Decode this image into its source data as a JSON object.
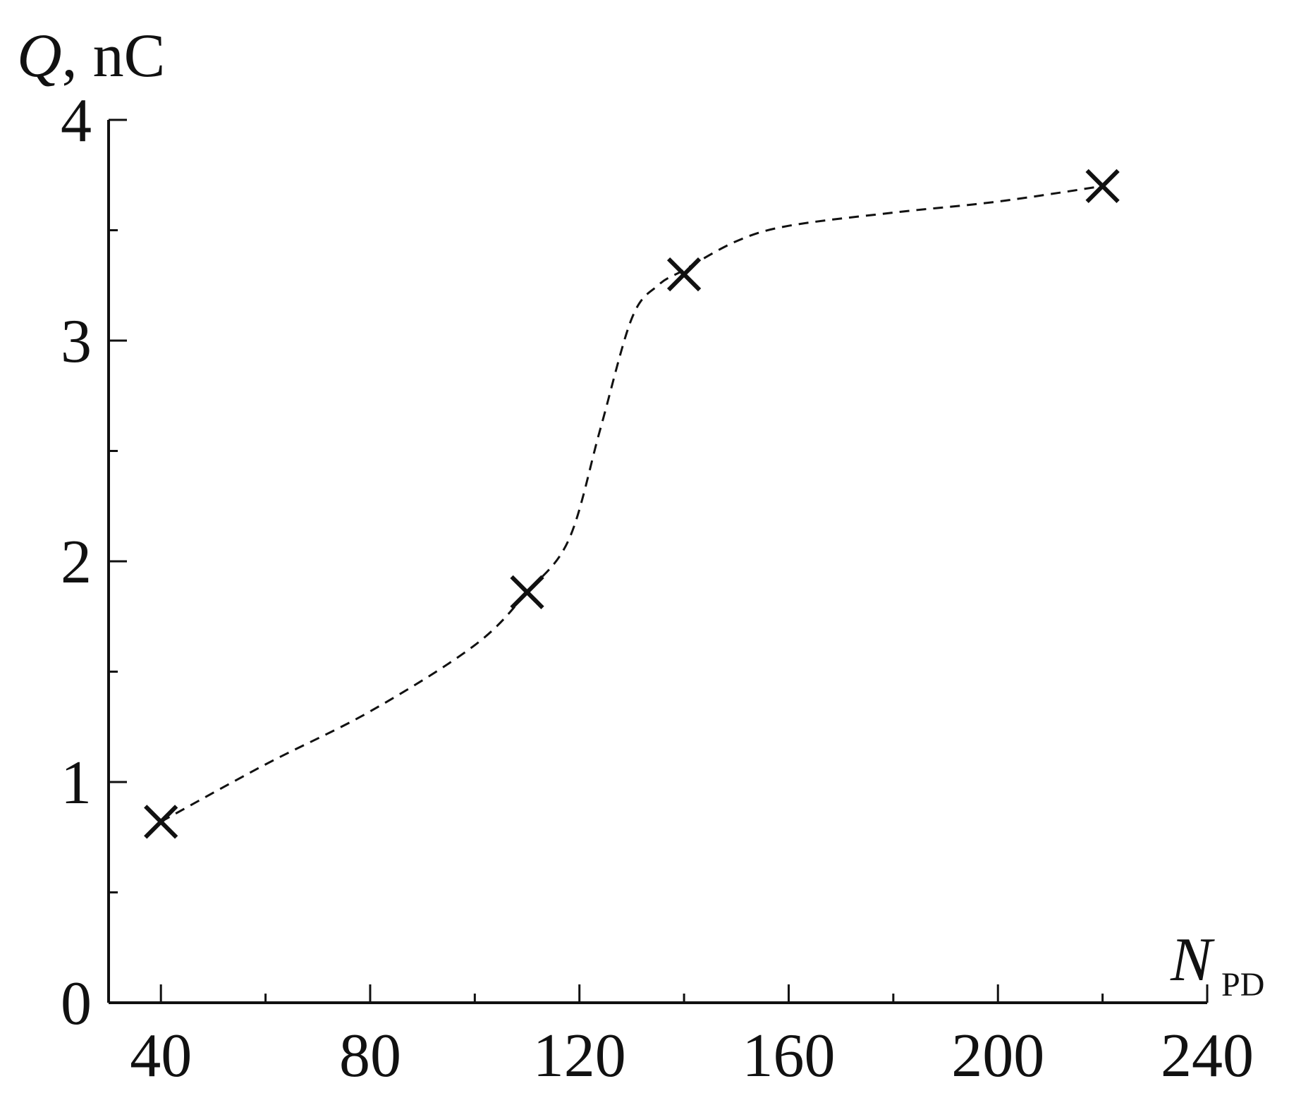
{
  "chart_data": {
    "type": "scatter",
    "xlabel": {
      "symbol": "N",
      "subscript": "PD"
    },
    "ylabel": {
      "symbol": "Q",
      "unit": ", nC"
    },
    "xlim": [
      30,
      240
    ],
    "ylim": [
      0,
      4
    ],
    "x_ticks": [
      40,
      80,
      120,
      160,
      200,
      240
    ],
    "x_minor_ticks": [
      60,
      100,
      140,
      180,
      220
    ],
    "y_ticks": [
      0,
      1,
      2,
      3,
      4
    ],
    "y_minor_ticks": [
      0.5,
      1.5,
      2.5,
      3.5
    ],
    "grid": false,
    "legend": "none",
    "marker": "x",
    "line_style": "dashed",
    "series": [
      {
        "x": [
          40,
          110,
          140,
          220
        ],
        "y": [
          0.82,
          1.86,
          3.3,
          3.7
        ]
      }
    ],
    "trend_curve": {
      "x": [
        40,
        60,
        80,
        100,
        110,
        118,
        124,
        130,
        135,
        140,
        150,
        160,
        180,
        200,
        220
      ],
      "y": [
        0.82,
        1.08,
        1.32,
        1.62,
        1.86,
        2.1,
        2.6,
        3.1,
        3.25,
        3.32,
        3.45,
        3.52,
        3.58,
        3.63,
        3.7
      ]
    }
  }
}
